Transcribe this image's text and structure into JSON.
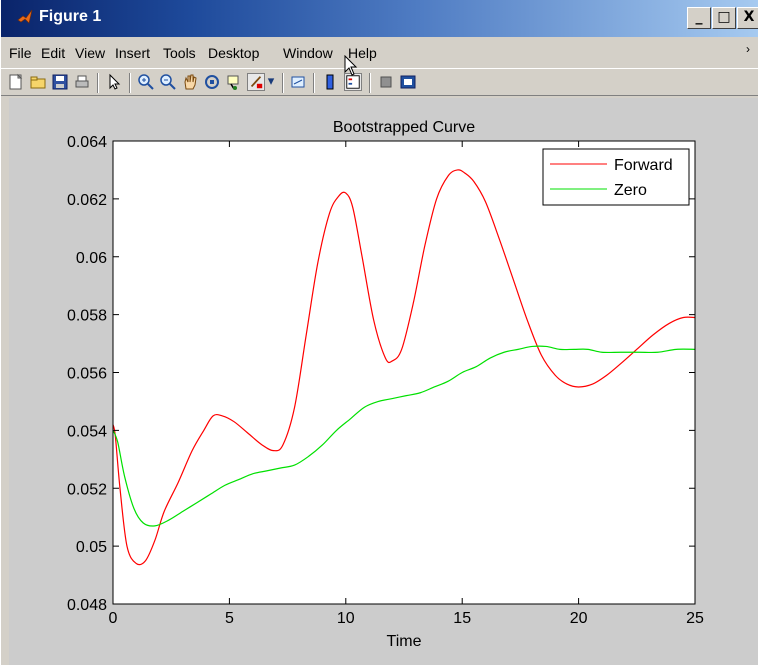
{
  "window": {
    "title": "Figure 1",
    "minimize_label": "_",
    "maximize_label": "□",
    "close_label": "X"
  },
  "menu": {
    "items": [
      "File",
      "Edit",
      "View",
      "Insert",
      "Tools",
      "Desktop",
      "Window",
      "Help"
    ]
  },
  "toolbar": {
    "icons": [
      "new-figure-icon",
      "open-file-icon",
      "save-icon",
      "print-icon",
      "pointer-icon",
      "zoom-in-icon",
      "zoom-out-icon",
      "pan-hand-icon",
      "rotate-3d-icon",
      "data-cursor-icon",
      "brush-icon",
      "brush-dropdown-icon",
      "link-plot-icon",
      "colorbar-icon",
      "legend-icon",
      "hide-plot-tools-icon",
      "show-plot-tools-icon"
    ]
  },
  "colors": {
    "forward": "#ff0000",
    "zero": "#00e000",
    "axes_bg": "#ffffff",
    "figure_bg": "#cccccc"
  },
  "chart_data": {
    "type": "line",
    "title": "Bootstrapped Curve",
    "xlabel": "Time",
    "ylabel": "",
    "xlim": [
      0,
      25
    ],
    "ylim": [
      0.048,
      0.064
    ],
    "xticks": [
      0,
      5,
      10,
      15,
      20,
      25
    ],
    "xtick_labels": [
      "0",
      "5",
      "10",
      "15",
      "20",
      "25"
    ],
    "yticks": [
      0.048,
      0.05,
      0.052,
      0.054,
      0.056,
      0.058,
      0.06,
      0.062,
      0.064
    ],
    "ytick_labels": [
      "0.048",
      "0.05",
      "0.052",
      "0.054",
      "0.056",
      "0.058",
      "0.06",
      "0.062",
      "0.064"
    ],
    "grid": false,
    "legend_position": "top-right",
    "series": [
      {
        "name": "Forward",
        "x": [
          0,
          0.1,
          0.3,
          0.6,
          1,
          1.4,
          1.8,
          2.2,
          2.8,
          3.4,
          3.9,
          4.3,
          4.7,
          5.2,
          5.8,
          6.4,
          6.9,
          7.3,
          7.8,
          8.3,
          8.8,
          9.3,
          9.7,
          10.0,
          10.3,
          10.7,
          11.2,
          11.7,
          12.0,
          12.4,
          12.9,
          13.4,
          13.9,
          14.4,
          14.8,
          15.1,
          15.5,
          16.0,
          16.6,
          17.2,
          17.8,
          18.4,
          19.0,
          19.5,
          20.0,
          20.6,
          21.2,
          21.8,
          22.5,
          23.2,
          23.9,
          24.5,
          25
        ],
        "y": [
          0.0542,
          0.0538,
          0.052,
          0.05,
          0.0494,
          0.0495,
          0.0502,
          0.0512,
          0.0522,
          0.0533,
          0.054,
          0.0545,
          0.0545,
          0.0543,
          0.0539,
          0.0535,
          0.0533,
          0.0535,
          0.0548,
          0.0573,
          0.0598,
          0.0615,
          0.0621,
          0.0622,
          0.0617,
          0.06,
          0.0578,
          0.0565,
          0.0564,
          0.0568,
          0.0584,
          0.0604,
          0.062,
          0.0628,
          0.063,
          0.0629,
          0.0626,
          0.0619,
          0.0606,
          0.0592,
          0.0578,
          0.0566,
          0.0559,
          0.0556,
          0.0555,
          0.0556,
          0.0559,
          0.0563,
          0.0568,
          0.0573,
          0.0577,
          0.0579,
          0.0579
        ]
      },
      {
        "name": "Zero",
        "x": [
          0,
          0.2,
          0.5,
          0.9,
          1.3,
          1.8,
          2.4,
          3.0,
          3.6,
          4.2,
          4.8,
          5.4,
          6.0,
          6.6,
          7.2,
          7.8,
          8.4,
          9.0,
          9.6,
          10.2,
          10.8,
          11.4,
          12.0,
          12.6,
          13.2,
          13.8,
          14.4,
          15.0,
          15.6,
          16.2,
          16.8,
          17.4,
          18.0,
          18.6,
          19.2,
          19.8,
          20.4,
          21.0,
          21.8,
          22.6,
          23.4,
          24.2,
          25
        ],
        "y": [
          0.054,
          0.0536,
          0.0524,
          0.0513,
          0.0508,
          0.0507,
          0.0509,
          0.0512,
          0.0515,
          0.0518,
          0.0521,
          0.0523,
          0.0525,
          0.0526,
          0.0527,
          0.0528,
          0.0531,
          0.0535,
          0.054,
          0.0544,
          0.0548,
          0.055,
          0.0551,
          0.0552,
          0.0553,
          0.0555,
          0.0557,
          0.056,
          0.0562,
          0.0565,
          0.0567,
          0.0568,
          0.0569,
          0.0569,
          0.0568,
          0.0568,
          0.0568,
          0.0567,
          0.0567,
          0.0567,
          0.0567,
          0.0568,
          0.0568
        ]
      }
    ]
  }
}
